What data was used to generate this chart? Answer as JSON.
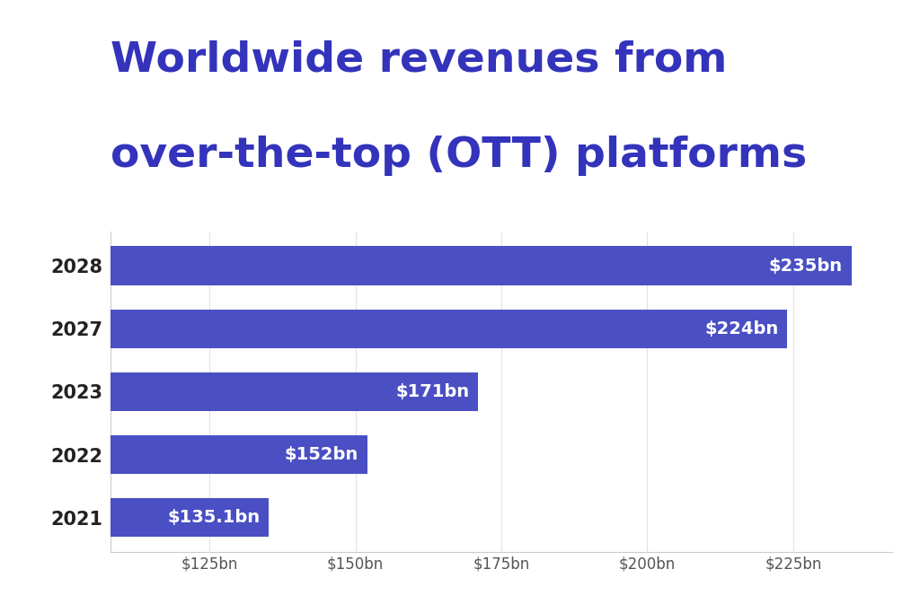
{
  "title_line1": "Worldwide revenues from",
  "title_line2": "over-the-top (OTT) platforms",
  "title_color": "#3333bb",
  "background_color": "#ffffff",
  "bar_color": "#4a4fc4",
  "years": [
    "2021",
    "2022",
    "2023",
    "2027",
    "2028"
  ],
  "values": [
    135.1,
    152,
    171,
    224,
    235
  ],
  "labels": [
    "$135.1bn",
    "$152bn",
    "$171bn",
    "$224bn",
    "$235bn"
  ],
  "x_ticks": [
    125,
    150,
    175,
    200,
    225
  ],
  "x_tick_labels": [
    "$125bn",
    "$150bn",
    "$175bn",
    "$200bn",
    "$225bn"
  ],
  "xlim": [
    108,
    242
  ],
  "bar_height": 0.62,
  "label_fontsize": 14,
  "tick_fontsize": 12,
  "year_fontsize": 15,
  "title_fontsize1": 34,
  "title_fontsize2": 34
}
